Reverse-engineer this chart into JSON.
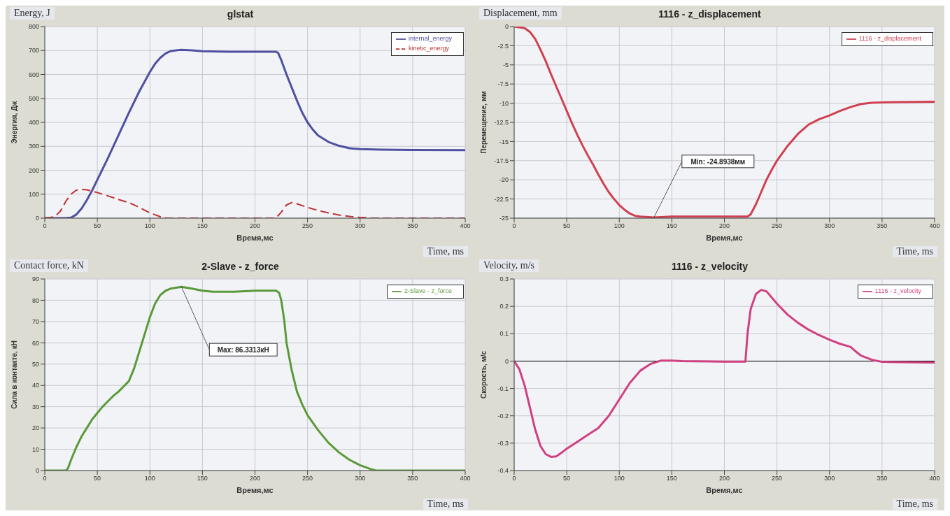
{
  "chart_data": [
    {
      "type": "line",
      "title": "glstat",
      "xlabel": "Время,мс",
      "ylabel": "Энергия, Дж",
      "annotations": [
        "Energy, J",
        "Time, ms"
      ],
      "xlim": [
        0,
        400
      ],
      "xticks": [
        0,
        50,
        100,
        150,
        200,
        250,
        300,
        350,
        400
      ],
      "ylim": [
        0,
        800
      ],
      "yticks": [
        0,
        100,
        200,
        300,
        400,
        500,
        600,
        700,
        800
      ],
      "grid": true,
      "legend": "top right",
      "x": [
        0,
        20,
        25,
        30,
        35,
        40,
        45,
        50,
        60,
        70,
        80,
        90,
        100,
        105,
        110,
        115,
        120,
        130,
        140,
        150,
        175,
        200,
        220,
        222,
        225,
        230,
        235,
        240,
        245,
        250,
        255,
        260,
        270,
        280,
        290,
        300,
        320,
        350,
        400
      ],
      "series": [
        {
          "name": "internal_energy",
          "color": "#5050a0",
          "values": [
            0,
            0,
            2,
            15,
            40,
            75,
            115,
            160,
            250,
            345,
            440,
            530,
            610,
            645,
            670,
            688,
            698,
            703,
            701,
            697,
            695,
            695,
            695,
            690,
            660,
            600,
            545,
            490,
            440,
            400,
            370,
            345,
            318,
            302,
            292,
            288,
            286,
            285,
            284
          ]
        },
        {
          "name": "kinetic_energy",
          "color": "#c03030",
          "line_style": "dashed",
          "x": [
            0,
            5,
            10,
            15,
            20,
            25,
            30,
            35,
            40,
            50,
            60,
            70,
            80,
            90,
            100,
            110,
            115,
            120,
            220,
            225,
            230,
            235,
            240,
            250,
            260,
            270,
            280,
            290,
            300,
            310,
            320,
            400
          ],
          "values": [
            0,
            2,
            8,
            30,
            70,
            100,
            117,
            120,
            118,
            107,
            93,
            78,
            65,
            45,
            22,
            6,
            1,
            0,
            0,
            25,
            55,
            65,
            60,
            45,
            32,
            22,
            13,
            7,
            3,
            1,
            0,
            0
          ]
        }
      ]
    },
    {
      "type": "line",
      "title": "1116 - z_displacement",
      "xlabel": "Время,мс",
      "ylabel": "Перемещение, мм",
      "annotations": [
        "Displacement, mm",
        "Time, ms",
        {
          "text": "Min: -24.8938мм",
          "x": 133,
          "y": -24.8938
        }
      ],
      "xlim": [
        0,
        400
      ],
      "xticks": [
        0,
        50,
        100,
        150,
        200,
        250,
        300,
        350,
        400
      ],
      "ylim": [
        -25,
        0
      ],
      "yticks": [
        -25,
        -22.5,
        -20,
        -17.5,
        -15,
        -12.5,
        -10,
        -7.5,
        -5,
        -2.5,
        0
      ],
      "grid": true,
      "legend": "top right",
      "x": [
        0,
        10,
        15,
        20,
        25,
        30,
        35,
        40,
        45,
        50,
        55,
        60,
        65,
        70,
        75,
        80,
        85,
        90,
        95,
        100,
        105,
        110,
        115,
        120,
        133,
        150,
        200,
        222,
        225,
        230,
        235,
        240,
        245,
        250,
        260,
        270,
        280,
        290,
        300,
        310,
        320,
        330,
        340,
        350,
        400
      ],
      "series": [
        {
          "name": "1116 - z_displacement",
          "color": "#d04050",
          "values": [
            0,
            -0.2,
            -0.7,
            -1.6,
            -3,
            -4.5,
            -6.2,
            -7.8,
            -9.4,
            -11,
            -12.6,
            -14.1,
            -15.5,
            -16.8,
            -18,
            -19.3,
            -20.5,
            -21.6,
            -22.5,
            -23.3,
            -23.9,
            -24.4,
            -24.7,
            -24.8,
            -24.9,
            -24.8,
            -24.8,
            -24.8,
            -24.5,
            -23.2,
            -21.6,
            -20,
            -18.7,
            -17.5,
            -15.6,
            -14,
            -12.8,
            -12.1,
            -11.6,
            -11,
            -10.5,
            -10.1,
            -9.95,
            -9.9,
            -9.8
          ]
        }
      ]
    },
    {
      "type": "line",
      "title": "2-Slave - z_force",
      "xlabel": "Время,мс",
      "ylabel": "Сила в контакте, кН",
      "annotations": [
        "Contact force, kN",
        "Time, ms",
        {
          "text": "Max: 86.3313кН",
          "x": 130,
          "y": 86.3313
        }
      ],
      "xlim": [
        0,
        400
      ],
      "xticks": [
        0,
        50,
        100,
        150,
        200,
        250,
        300,
        350,
        400
      ],
      "ylim": [
        0,
        90
      ],
      "yticks": [
        0,
        10,
        20,
        30,
        40,
        50,
        60,
        70,
        80,
        90
      ],
      "grid": true,
      "legend": "top right",
      "x": [
        0,
        20,
        22,
        25,
        30,
        35,
        40,
        45,
        50,
        55,
        60,
        65,
        70,
        75,
        80,
        85,
        90,
        95,
        100,
        105,
        110,
        115,
        120,
        130,
        140,
        150,
        160,
        180,
        200,
        220,
        223,
        225,
        228,
        230,
        235,
        240,
        245,
        250,
        260,
        270,
        280,
        290,
        300,
        310,
        315,
        400
      ],
      "series": [
        {
          "name": "2-Slave - z_force",
          "color": "#5a9a3a",
          "values": [
            0,
            0,
            1,
            5,
            11,
            16,
            20,
            24,
            27,
            30,
            32.5,
            35,
            37,
            39.5,
            42,
            48,
            56,
            64,
            72,
            78.5,
            82.5,
            84.5,
            85.5,
            86.3,
            85.5,
            84.5,
            84,
            84,
            84.5,
            84.5,
            83.5,
            80,
            70,
            60,
            47,
            37,
            31,
            26,
            19,
            13,
            8.5,
            5,
            2.5,
            0.7,
            0,
            0
          ]
        }
      ]
    },
    {
      "type": "line",
      "title": "1116 - z_velocity",
      "xlabel": "Время,мс",
      "ylabel": "Скорость, м/с",
      "annotations": [
        "Velocity, m/s",
        "Time, ms"
      ],
      "xlim": [
        0,
        400
      ],
      "xticks": [
        0,
        50,
        100,
        150,
        200,
        250,
        300,
        350,
        400
      ],
      "ylim": [
        -0.4,
        0.3
      ],
      "yticks": [
        -0.4,
        -0.3,
        -0.2,
        -0.1,
        0,
        0.1,
        0.2,
        0.3
      ],
      "grid": true,
      "legend": "top right",
      "ref_lines": [
        {
          "axis": "y",
          "value": 0,
          "color": "#000000"
        }
      ],
      "x": [
        0,
        5,
        10,
        15,
        20,
        25,
        30,
        35,
        40,
        45,
        50,
        60,
        70,
        80,
        90,
        100,
        110,
        120,
        130,
        140,
        150,
        160,
        200,
        220,
        222,
        225,
        230,
        235,
        240,
        250,
        260,
        270,
        280,
        290,
        300,
        310,
        320,
        325,
        330,
        340,
        350,
        400
      ],
      "series": [
        {
          "name": "1116 - z_velocity",
          "color": "#d04080",
          "values": [
            0,
            -0.03,
            -0.09,
            -0.17,
            -0.25,
            -0.31,
            -0.34,
            -0.35,
            -0.348,
            -0.335,
            -0.32,
            -0.295,
            -0.27,
            -0.245,
            -0.2,
            -0.14,
            -0.08,
            -0.035,
            -0.01,
            0.002,
            0.002,
            0,
            -0.002,
            -0.002,
            0.1,
            0.19,
            0.245,
            0.26,
            0.255,
            0.21,
            0.17,
            0.14,
            0.115,
            0.095,
            0.078,
            0.063,
            0.052,
            0.035,
            0.02,
            0.005,
            -0.003,
            -0.005
          ]
        }
      ]
    }
  ]
}
